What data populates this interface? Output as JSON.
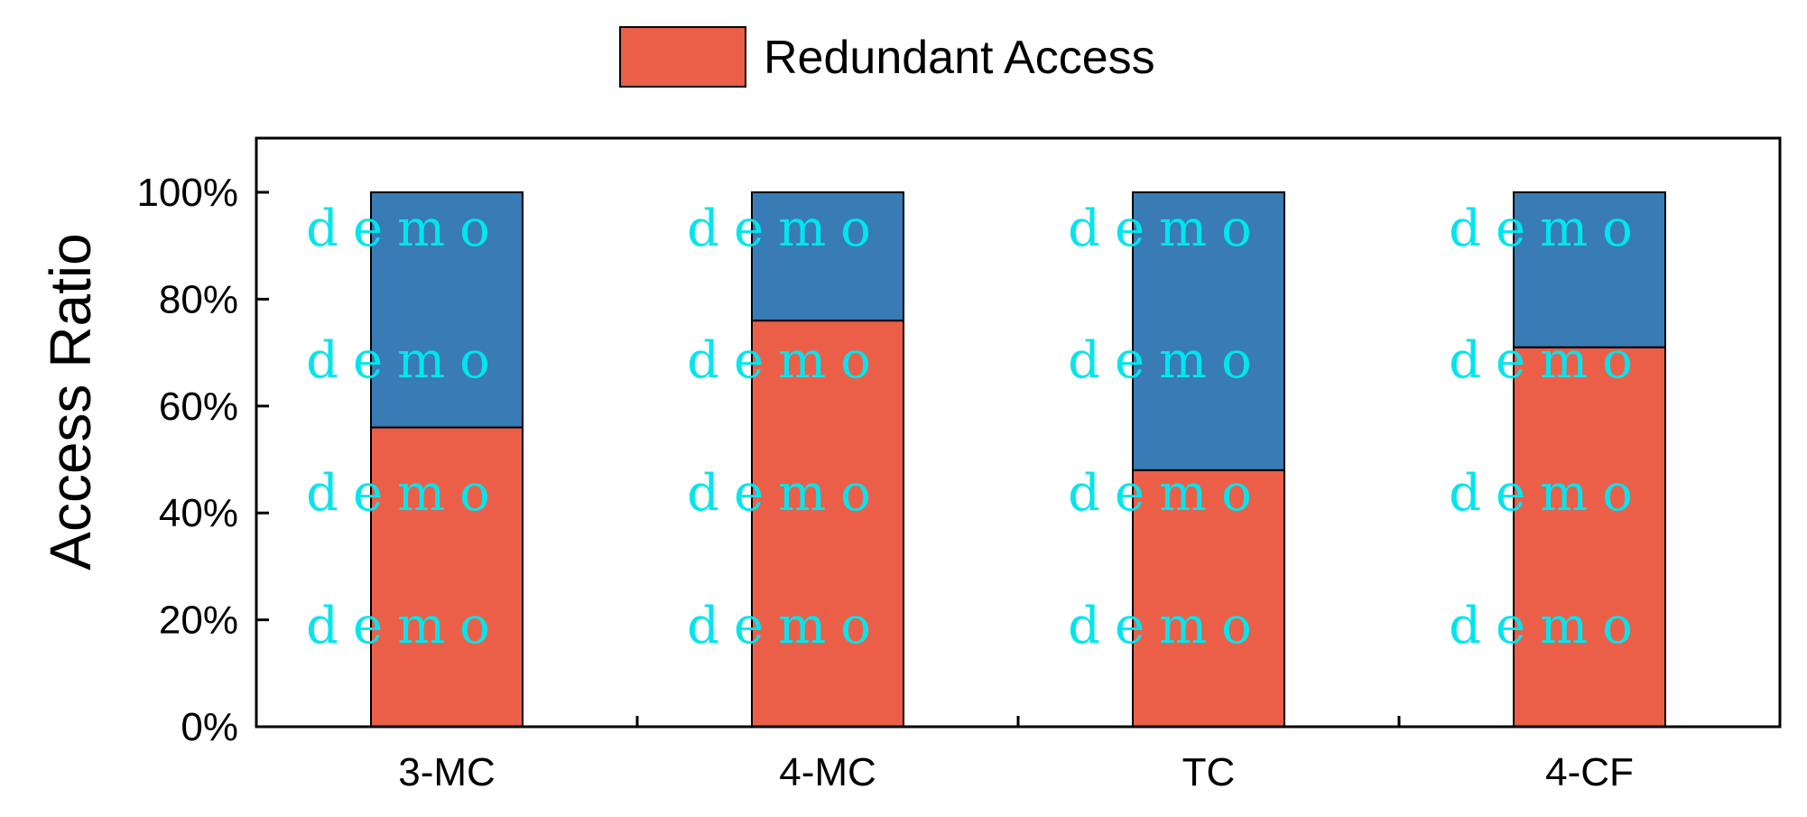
{
  "chart_data": {
    "type": "bar",
    "stacked": true,
    "categories": [
      "3-MC",
      "4-MC",
      "TC",
      "4-CF"
    ],
    "series": [
      {
        "name": "Redundant Access",
        "values": [
          56,
          76,
          48,
          71
        ],
        "color": "#EB5F48"
      },
      {
        "name": "",
        "values": [
          44,
          24,
          52,
          29
        ],
        "color": "#387BB5"
      }
    ],
    "ylabel": "Access Ratio",
    "xlabel": "",
    "ylim": [
      0,
      100
    ],
    "yticks": [
      "0%",
      "20%",
      "40%",
      "60%",
      "80%",
      "100%"
    ],
    "legend": {
      "position": "top-center",
      "entries": [
        "Redundant Access"
      ]
    },
    "grid": false
  },
  "watermark": {
    "text": "demo",
    "color": "#00E5EE"
  }
}
